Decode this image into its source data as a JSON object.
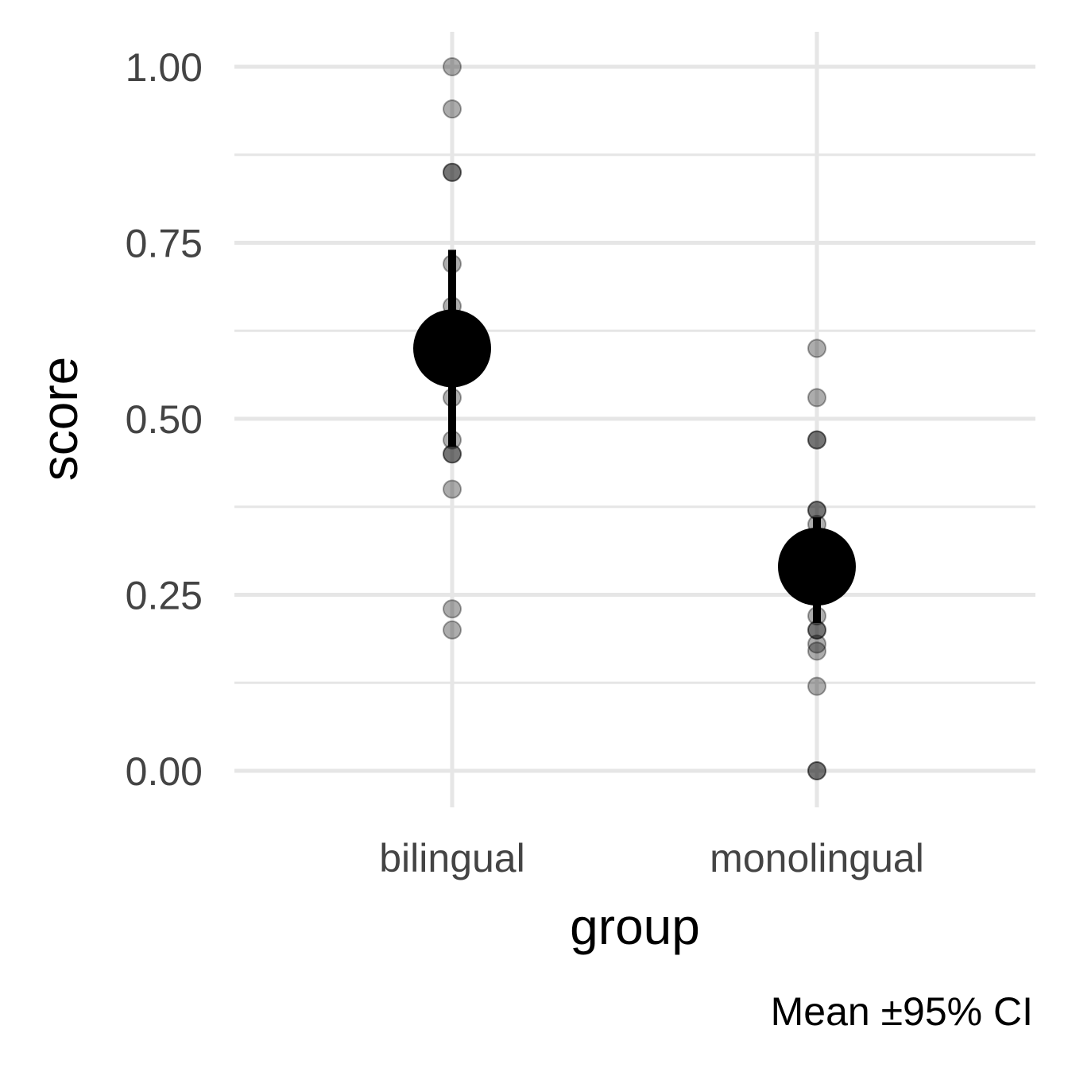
{
  "chart_data": {
    "type": "scatter",
    "xlabel": "group",
    "ylabel": "score",
    "caption": "Mean ±95% CI",
    "categories": [
      "bilingual",
      "monolingual"
    ],
    "ylim": [
      -0.05,
      1.05
    ],
    "yticks": [
      0.0,
      0.25,
      0.5,
      0.75,
      1.0
    ],
    "ytick_labels": [
      "0.00",
      "0.25",
      "0.50",
      "0.75",
      "1.00"
    ],
    "grid": true,
    "points": [
      {
        "group": "bilingual",
        "values": [
          1.0,
          0.94,
          0.85,
          0.85,
          0.72,
          0.66,
          0.53,
          0.47,
          0.45,
          0.45,
          0.4,
          0.23,
          0.2
        ]
      },
      {
        "group": "monolingual",
        "values": [
          0.6,
          0.53,
          0.47,
          0.47,
          0.37,
          0.37,
          0.35,
          0.22,
          0.2,
          0.2,
          0.18,
          0.17,
          0.12,
          0.0,
          0.0
        ]
      }
    ],
    "summary": [
      {
        "group": "bilingual",
        "mean": 0.6,
        "ci_low": 0.46,
        "ci_high": 0.74
      },
      {
        "group": "monolingual",
        "mean": 0.29,
        "ci_low": 0.21,
        "ci_high": 0.36
      }
    ],
    "colors": {
      "grid": "#e6e6e6",
      "points": "#000000",
      "summary": "#000000",
      "tick_text": "#444444"
    }
  }
}
